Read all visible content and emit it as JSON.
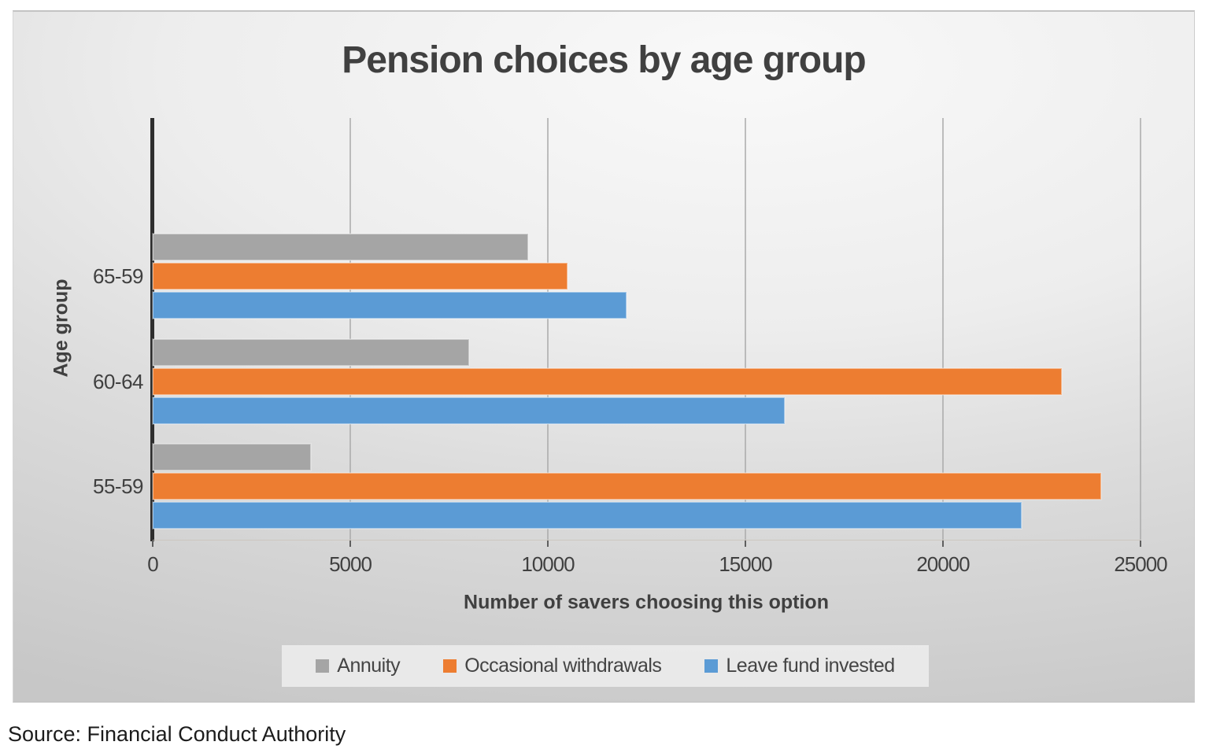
{
  "source": "Source: Financial Conduct Authority",
  "chart_data": {
    "type": "bar",
    "orientation": "horizontal",
    "title": "Pension choices by age group",
    "xlabel": "Number of savers choosing this option",
    "ylabel": "Age group",
    "categories": [
      "65-59",
      "60-64",
      "55-59"
    ],
    "series": [
      {
        "name": "Annuity",
        "color": "#a5a5a5",
        "values": [
          9500,
          8000,
          4000
        ]
      },
      {
        "name": "Occasional withdrawals",
        "color": "#ed7d31",
        "values": [
          10500,
          23000,
          24000
        ]
      },
      {
        "name": "Leave fund invested",
        "color": "#5b9bd5",
        "values": [
          12000,
          16000,
          22000
        ]
      }
    ],
    "xlim": [
      0,
      25000
    ],
    "xticks": [
      0,
      5000,
      10000,
      15000,
      20000,
      25000
    ],
    "grid": true,
    "legend_position": "bottom"
  }
}
